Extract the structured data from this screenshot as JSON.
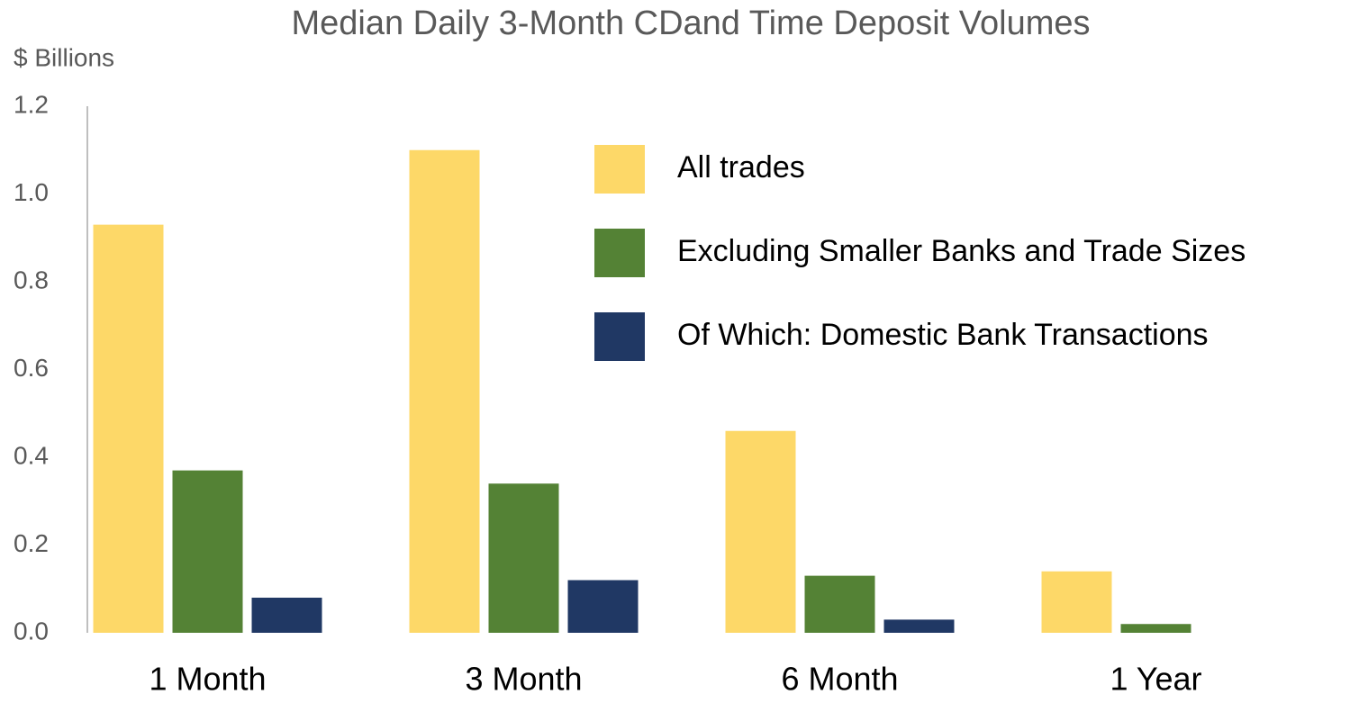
{
  "chart_data": {
    "type": "bar",
    "title": "Median Daily 3-Month CDand Time Deposit Volumes",
    "y_label": "$ Billions",
    "categories": [
      "1 Month",
      "3 Month",
      "6 Month",
      "1 Year"
    ],
    "series": [
      {
        "name": "All trades",
        "color": "#fdd868",
        "values": [
          0.93,
          1.1,
          0.46,
          0.14
        ]
      },
      {
        "name": "Excluding Smaller Banks and Trade Sizes",
        "color": "#548235",
        "values": [
          0.37,
          0.34,
          0.13,
          0.02
        ]
      },
      {
        "name": "Of Which: Domestic Bank Transactions",
        "color": "#203864",
        "values": [
          0.08,
          0.12,
          0.03,
          null
        ]
      }
    ],
    "ylim": [
      0,
      1.2
    ],
    "yticks": [
      {
        "value": 0,
        "label": "0.0"
      },
      0.2,
      0.4,
      0.6,
      0.8,
      {
        "value": 1,
        "label": "1.0"
      },
      1.2
    ],
    "grid": false,
    "legend": "upper right"
  }
}
